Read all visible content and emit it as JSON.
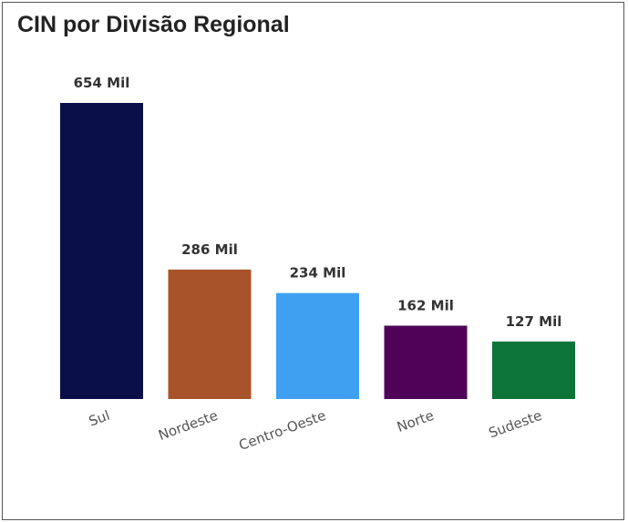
{
  "chart_data": {
    "type": "bar",
    "title": "CIN por Divisão Regional",
    "xlabel": "",
    "ylabel": "",
    "categories": [
      "Sul",
      "Nordeste",
      "Centro-Oeste",
      "Norte",
      "Sudeste"
    ],
    "values": [
      654,
      286,
      234,
      162,
      127
    ],
    "data_labels": [
      "654 Mil",
      "286 Mil",
      "234 Mil",
      "162 Mil",
      "127 Mil"
    ],
    "unit": "Mil",
    "colors": [
      "#0a0f4a",
      "#a8532a",
      "#3fa0f2",
      "#4e0258",
      "#0c7339"
    ],
    "ylim": [
      0,
      654
    ],
    "grid": false,
    "legend": "none"
  }
}
